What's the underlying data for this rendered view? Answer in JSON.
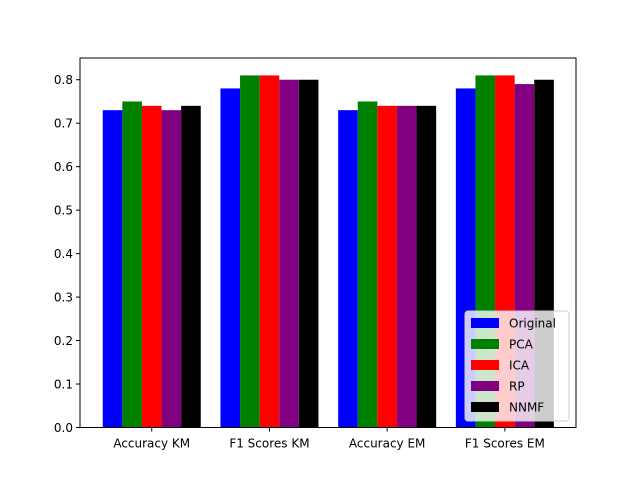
{
  "chart_data": {
    "type": "bar",
    "title": "",
    "xlabel": "",
    "ylabel": "",
    "categories": [
      "Accuracy KM",
      "F1 Scores KM",
      "Accuracy EM",
      "F1 Scores EM"
    ],
    "series": [
      {
        "name": "Original",
        "color": "#0000ff",
        "values": [
          0.73,
          0.78,
          0.73,
          0.78
        ]
      },
      {
        "name": "PCA",
        "color": "#008000",
        "values": [
          0.75,
          0.81,
          0.75,
          0.81
        ]
      },
      {
        "name": "ICA",
        "color": "#ff0000",
        "values": [
          0.74,
          0.81,
          0.74,
          0.81
        ]
      },
      {
        "name": "RP",
        "color": "#800080",
        "values": [
          0.73,
          0.8,
          0.74,
          0.79
        ]
      },
      {
        "name": "NNMF",
        "color": "#000000",
        "values": [
          0.74,
          0.8,
          0.74,
          0.8
        ]
      }
    ],
    "ylim": [
      0,
      0.85
    ],
    "yticks": [
      "0.0",
      "0.1",
      "0.2",
      "0.3",
      "0.4",
      "0.5",
      "0.6",
      "0.7",
      "0.8"
    ],
    "grid": false,
    "legend_position": "lower-right"
  }
}
